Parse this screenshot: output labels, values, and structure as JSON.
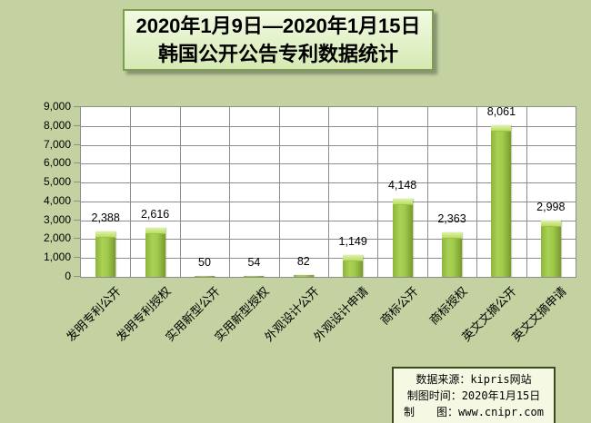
{
  "page": {
    "background_color": "#c3d2a0"
  },
  "title": {
    "line1": "2020年1月9日—2020年1月15日",
    "line2": "韩国公开公告专利数据统计"
  },
  "chart_data": {
    "type": "bar",
    "title": "2020年1月9日—2020年1月15日 韩国公开公告专利数据统计",
    "categories": [
      "发明专利公开",
      "发明专利授权",
      "实用新型公开",
      "实用新型授权",
      "外观设计公开",
      "外观设计申请",
      "商标公开",
      "商标授权",
      "英文文摘公开",
      "英文文摘申请"
    ],
    "values": [
      2388,
      2616,
      50,
      54,
      82,
      1149,
      4148,
      2363,
      8061,
      2998
    ],
    "data_labels": [
      "2,388",
      "2,616",
      "50",
      "54",
      "82",
      "1,149",
      "4,148",
      "2,363",
      "8,061",
      "2,998"
    ],
    "xlabel": "",
    "ylabel": "",
    "ylim": [
      0,
      9000
    ],
    "ytick_interval": 1000,
    "ytick_labels": [
      "0",
      "1,000",
      "2,000",
      "3,000",
      "4,000",
      "5,000",
      "6,000",
      "7,000",
      "8,000",
      "9,000"
    ],
    "grid": true,
    "legend": "none",
    "bar_color": "#9cc747",
    "plot_background": "#ffffff",
    "gridline_color": "#8e8e8e"
  },
  "footer": {
    "lines": [
      "数据来源：kipris网站",
      "制图时间：2020年1月15日",
      "制　　图：www.cnipr.com"
    ]
  }
}
